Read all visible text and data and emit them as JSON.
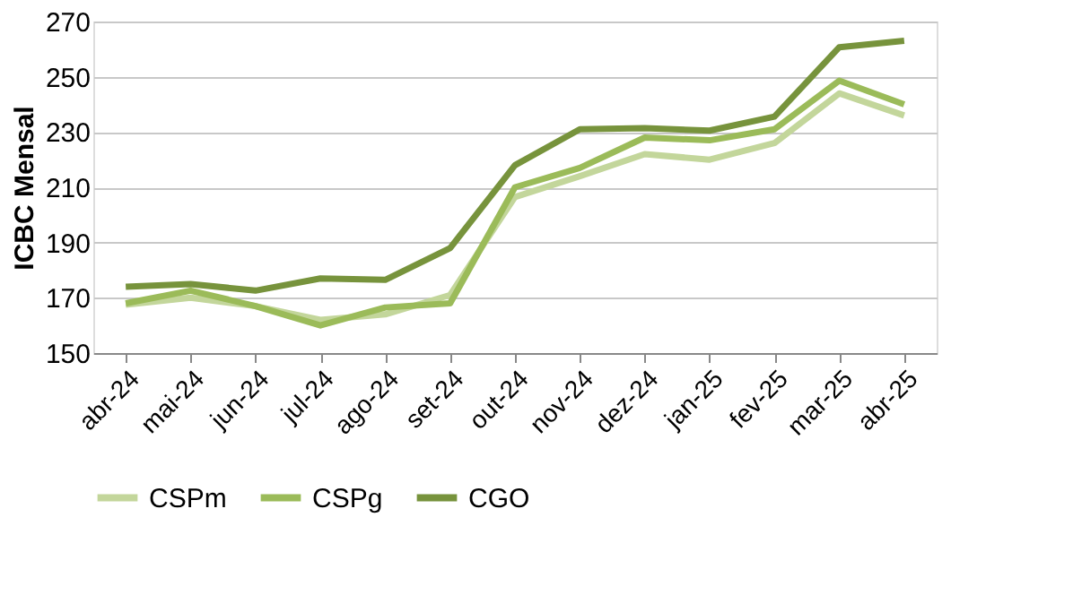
{
  "chart_data": {
    "type": "line",
    "ylabel": "ICBC Mensal",
    "categories": [
      "abr-24",
      "mai-24",
      "jun-24",
      "jul-24",
      "ago-24",
      "set-24",
      "out-24",
      "nov-24",
      "dez-24",
      "jan-25",
      "fev-25",
      "mar-25",
      "abr-25"
    ],
    "series": [
      {
        "name": "CSPm",
        "color": "#c3d69b",
        "values": [
          167.5,
          170,
          167,
          162,
          164,
          171,
          206.5,
          214,
          222,
          220,
          226,
          244,
          236
        ]
      },
      {
        "name": "CSPg",
        "color": "#9bbb59",
        "values": [
          168,
          172.6,
          167,
          160,
          166.5,
          168,
          210,
          217,
          228,
          227,
          231,
          248.6,
          240
        ]
      },
      {
        "name": "CGO",
        "color": "#77933c",
        "values": [
          174,
          175,
          172.6,
          177,
          176.5,
          188,
          218,
          231,
          231.4,
          230.5,
          235.6,
          260.7,
          263
        ]
      }
    ],
    "ylim": [
      150,
      270
    ],
    "yticks": [
      150,
      170,
      190,
      210,
      230,
      250,
      270
    ],
    "grid": "y",
    "legend": "bottom",
    "marker": "none",
    "line_style": "solid"
  }
}
